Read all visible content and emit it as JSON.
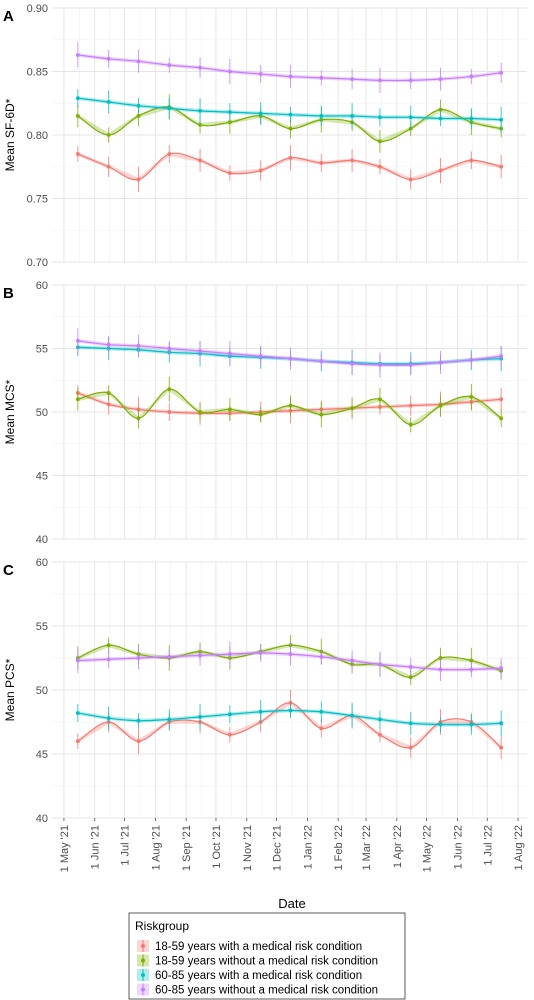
{
  "figure": {
    "xlabel": "Date",
    "x_ticks": [
      "1 May '21",
      "1 Jun '21",
      "1 Jul '21",
      "1 Aug '21",
      "1 Sep '21",
      "1 Oct '21",
      "1 Nov '21",
      "1 Dec '21",
      "1 Jan '22",
      "1 Feb '22",
      "1 Mar '22",
      "1 Apr '22",
      "1 May '22",
      "1 Jun '22",
      "1 Jul '22",
      "1 Aug '22"
    ],
    "legend": {
      "title": "Riskgroup",
      "entries": [
        {
          "label": "18-59 years with a medical risk condition",
          "color": "#F8766D"
        },
        {
          "label": "18-59 years without a medical risk condition",
          "color": "#7CAE00"
        },
        {
          "label": "60-85 years with a medical risk condition",
          "color": "#00BFC4"
        },
        {
          "label": "60-85 years without a medical risk condition",
          "color": "#C77CFF"
        }
      ]
    }
  },
  "chart_data": [
    {
      "panel": "A",
      "type": "line",
      "ylabel": "Mean SF-6D*",
      "ylim": [
        0.7,
        0.9
      ],
      "y_ticks": [
        "0.70",
        "0.75",
        "0.80",
        "0.85",
        "0.90"
      ],
      "x": [
        "2021-05-15",
        "2021-06-15",
        "2021-07-15",
        "2021-08-15",
        "2021-09-15",
        "2021-10-15",
        "2021-11-15",
        "2021-12-15",
        "2022-01-15",
        "2022-02-15",
        "2022-03-15",
        "2022-04-15",
        "2022-05-15",
        "2022-06-15",
        "2022-07-15"
      ],
      "series": [
        {
          "name": "18-59 years with a medical risk condition",
          "color": "#F8766D",
          "values": [
            0.785,
            0.775,
            0.765,
            0.785,
            0.78,
            0.77,
            0.772,
            0.782,
            0.778,
            0.78,
            0.775,
            0.765,
            0.772,
            0.78,
            0.775
          ]
        },
        {
          "name": "18-59 years without a medical risk condition",
          "color": "#7CAE00",
          "values": [
            0.815,
            0.8,
            0.815,
            0.822,
            0.808,
            0.81,
            0.815,
            0.805,
            0.812,
            0.81,
            0.795,
            0.805,
            0.82,
            0.81,
            0.805
          ]
        },
        {
          "name": "60-85 years with a medical risk condition",
          "color": "#00BFC4",
          "values": [
            0.829,
            0.826,
            0.823,
            0.821,
            0.819,
            0.818,
            0.817,
            0.816,
            0.815,
            0.815,
            0.814,
            0.814,
            0.813,
            0.813,
            0.812
          ]
        },
        {
          "name": "60-85 years without a medical risk condition",
          "color": "#C77CFF",
          "values": [
            0.863,
            0.86,
            0.858,
            0.855,
            0.853,
            0.85,
            0.848,
            0.846,
            0.845,
            0.844,
            0.843,
            0.843,
            0.844,
            0.846,
            0.849
          ]
        }
      ]
    },
    {
      "panel": "B",
      "type": "line",
      "ylabel": "Mean MCS*",
      "ylim": [
        40,
        60
      ],
      "y_ticks": [
        "40",
        "45",
        "50",
        "55",
        "60"
      ],
      "x": [
        "2021-05-15",
        "2021-06-15",
        "2021-07-15",
        "2021-08-15",
        "2021-09-15",
        "2021-10-15",
        "2021-11-15",
        "2021-12-15",
        "2022-01-15",
        "2022-02-15",
        "2022-03-15",
        "2022-04-15",
        "2022-05-15",
        "2022-06-15",
        "2022-07-15"
      ],
      "series": [
        {
          "name": "18-59 years with a medical risk condition",
          "color": "#F8766D",
          "values": [
            51.5,
            50.6,
            50.2,
            50.0,
            49.9,
            49.9,
            50.0,
            50.1,
            50.2,
            50.3,
            50.4,
            50.5,
            50.6,
            50.8,
            51.0
          ]
        },
        {
          "name": "18-59 years without a medical risk condition",
          "color": "#7CAE00",
          "values": [
            51.0,
            51.5,
            49.5,
            51.8,
            50.0,
            50.2,
            49.8,
            50.5,
            49.8,
            50.3,
            51.0,
            49.0,
            50.5,
            51.2,
            49.5
          ]
        },
        {
          "name": "60-85 years with a medical risk condition",
          "color": "#00BFC4",
          "values": [
            55.1,
            55.0,
            54.9,
            54.7,
            54.6,
            54.4,
            54.3,
            54.2,
            54.0,
            53.9,
            53.8,
            53.8,
            53.9,
            54.1,
            54.2
          ]
        },
        {
          "name": "60-85 years without a medical risk condition",
          "color": "#C77CFF",
          "values": [
            55.6,
            55.3,
            55.2,
            55.0,
            54.8,
            54.6,
            54.4,
            54.2,
            54.0,
            53.8,
            53.7,
            53.7,
            53.9,
            54.1,
            54.4
          ]
        }
      ]
    },
    {
      "panel": "C",
      "type": "line",
      "ylabel": "Mean PCS*",
      "ylim": [
        40,
        60
      ],
      "y_ticks": [
        "40",
        "45",
        "50",
        "55",
        "60"
      ],
      "x": [
        "2021-05-15",
        "2021-06-15",
        "2021-07-15",
        "2021-08-15",
        "2021-09-15",
        "2021-10-15",
        "2021-11-15",
        "2021-12-15",
        "2022-01-15",
        "2022-02-15",
        "2022-03-15",
        "2022-04-15",
        "2022-05-15",
        "2022-06-15",
        "2022-07-15"
      ],
      "series": [
        {
          "name": "18-59 years with a medical risk condition",
          "color": "#F8766D",
          "values": [
            46.0,
            47.5,
            46.0,
            47.5,
            47.5,
            46.5,
            47.5,
            49.0,
            47.0,
            48.0,
            46.5,
            45.5,
            47.5,
            47.5,
            45.5
          ]
        },
        {
          "name": "18-59 years without a medical risk condition",
          "color": "#7CAE00",
          "values": [
            52.5,
            53.5,
            52.8,
            52.5,
            53.0,
            52.5,
            53.0,
            53.5,
            53.0,
            52.0,
            52.0,
            51.0,
            52.5,
            52.3,
            51.5
          ]
        },
        {
          "name": "60-85 years with a medical risk condition",
          "color": "#00BFC4",
          "values": [
            48.2,
            47.8,
            47.6,
            47.7,
            47.9,
            48.1,
            48.3,
            48.4,
            48.3,
            48.0,
            47.7,
            47.4,
            47.3,
            47.3,
            47.4
          ]
        },
        {
          "name": "60-85 years without a medical risk condition",
          "color": "#C77CFF",
          "values": [
            52.3,
            52.4,
            52.5,
            52.6,
            52.7,
            52.8,
            52.9,
            52.8,
            52.6,
            52.3,
            52.0,
            51.8,
            51.6,
            51.6,
            51.7
          ]
        }
      ]
    }
  ]
}
